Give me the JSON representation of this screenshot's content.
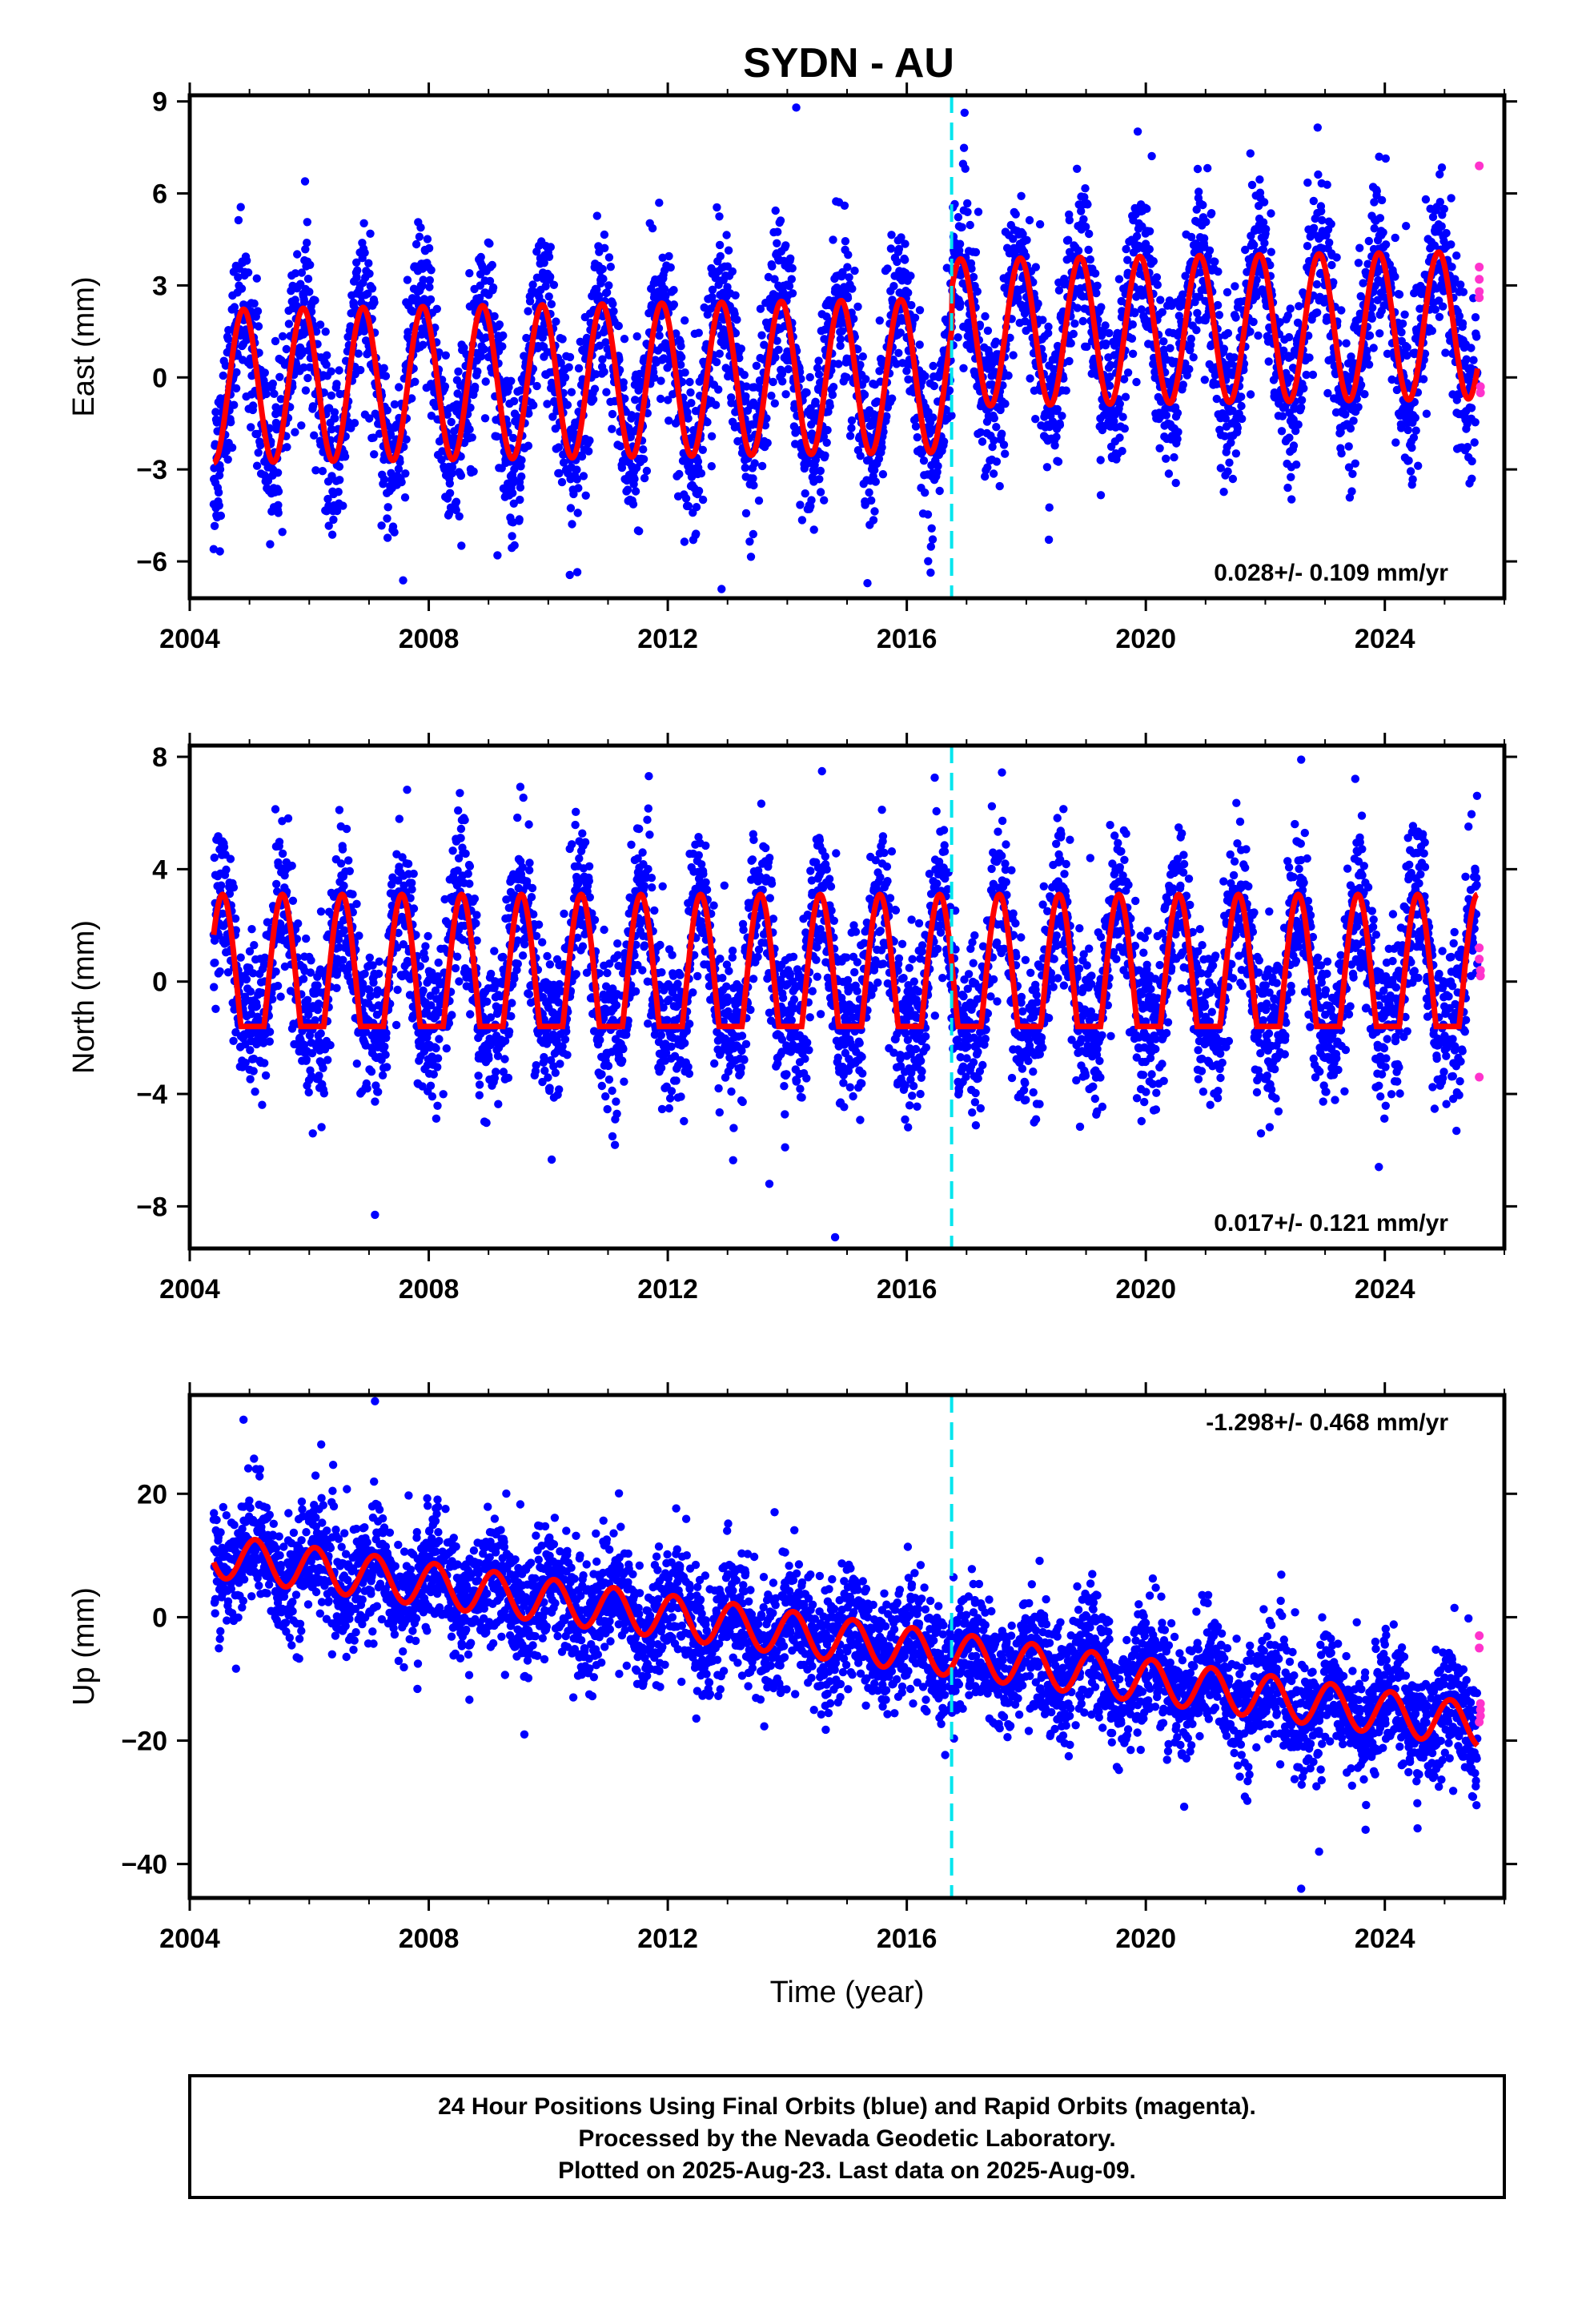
{
  "title": "SYDN - AU",
  "colors": {
    "final_orbits": "#0000ff",
    "rapid_orbits": "#ff33cc",
    "model_fit": "#ff0000",
    "event_line": "#00e5ee"
  },
  "footer": {
    "lines": [
      "24 Hour Positions Using Final Orbits (blue) and Rapid Orbits (magenta).",
      "Processed by the Nevada Geodetic Laboratory.",
      "Plotted on 2025-Aug-23. Last data on 2025-Aug-09."
    ]
  },
  "chart_data": [
    {
      "type": "scatter",
      "component": "east",
      "title": "SYDN - AU",
      "xlabel": "",
      "ylabel": "East (mm)",
      "xlim": [
        2004,
        2026
      ],
      "ylim": [
        -7.2,
        9.2
      ],
      "x_ticks": [
        2004,
        2008,
        2012,
        2016,
        2020,
        2024
      ],
      "x_tick_labels": [
        "2004",
        "2008",
        "2012",
        "2016",
        "2020",
        "2024"
      ],
      "y_ticks": [
        -6,
        -3,
        0,
        3,
        6,
        9
      ],
      "y_tick_labels": [
        "−6",
        "−3",
        "0",
        "3",
        "6",
        "9"
      ],
      "rate_label": "0.028+/- 0.109 mm/yr",
      "rate_position": "bottom-right",
      "event_line_x": 2016.75,
      "series": [
        {
          "name": "Final Orbits",
          "color": "#0000ff",
          "data_range": [
            2004.4,
            2025.55
          ],
          "model": {
            "type": "seasonal",
            "amplitude_early": 2.5,
            "amplitude_late": 2.4,
            "offset_early": -0.3,
            "offset_after_event": 1.1,
            "peak_phase_year_fraction": 0.9,
            "trend_mm_per_yr": 0.028
          },
          "scatter_mm": 1.3,
          "outliers": [
            [
              2014.15,
              8.8
            ],
            [
              2009.15,
              -5.8
            ],
            [
              2012.9,
              -6.9
            ],
            [
              2004.4,
              -5.6
            ]
          ]
        },
        {
          "name": "Rapid Orbits",
          "color": "#ff33cc",
          "points": [
            [
              2025.58,
              6.9
            ],
            [
              2025.58,
              3.6
            ],
            [
              2025.58,
              3.2
            ],
            [
              2025.58,
              2.8
            ],
            [
              2025.58,
              2.6
            ],
            [
              2025.6,
              -0.3
            ],
            [
              2025.6,
              -0.5
            ]
          ]
        },
        {
          "name": "Model Fit",
          "color": "#ff0000"
        }
      ]
    },
    {
      "type": "scatter",
      "component": "north",
      "title": "",
      "xlabel": "",
      "ylabel": "North (mm)",
      "xlim": [
        2004,
        2026
      ],
      "ylim": [
        -9.5,
        8.4
      ],
      "x_ticks": [
        2004,
        2008,
        2012,
        2016,
        2020,
        2024
      ],
      "x_tick_labels": [
        "2004",
        "2008",
        "2012",
        "2016",
        "2020",
        "2024"
      ],
      "y_ticks": [
        -8,
        -4,
        0,
        4,
        8
      ],
      "y_tick_labels": [
        "−8",
        "−4",
        "0",
        "4",
        "8"
      ],
      "rate_label": "0.017+/- 0.121 mm/yr",
      "rate_position": "bottom-right",
      "event_line_x": 2016.75,
      "series": [
        {
          "name": "Final Orbits",
          "color": "#0000ff",
          "data_range": [
            2004.4,
            2025.55
          ],
          "model": {
            "type": "seasonal_peaked",
            "peak": 3.1,
            "trough": -1.6,
            "peak_phase_year_fraction": 0.55,
            "trend_mm_per_yr": 0.017
          },
          "scatter_mm": 1.4,
          "outliers": [
            [
              2007.1,
              -8.3
            ],
            [
              2014.8,
              -9.1
            ],
            [
              2013.7,
              -7.2
            ],
            [
              2022.6,
              7.9
            ],
            [
              2023.9,
              -6.6
            ]
          ]
        },
        {
          "name": "Rapid Orbits",
          "color": "#ff33cc",
          "points": [
            [
              2025.58,
              1.2
            ],
            [
              2025.58,
              0.8
            ],
            [
              2025.6,
              0.4
            ],
            [
              2025.6,
              0.2
            ],
            [
              2025.58,
              -3.4
            ]
          ]
        },
        {
          "name": "Model Fit",
          "color": "#ff0000"
        }
      ]
    },
    {
      "type": "scatter",
      "component": "up",
      "title": "",
      "xlabel": "Time (year)",
      "ylabel": "Up (mm)",
      "xlim": [
        2004,
        2026
      ],
      "ylim": [
        -45.5,
        36
      ],
      "x_ticks": [
        2004,
        2008,
        2012,
        2016,
        2020,
        2024
      ],
      "x_tick_labels": [
        "2004",
        "2008",
        "2012",
        "2016",
        "2020",
        "2024"
      ],
      "y_ticks": [
        -40,
        -20,
        0,
        20
      ],
      "y_tick_labels": [
        "−40",
        "−20",
        "0",
        "20"
      ],
      "rate_label": "-1.298+/- 0.468 mm/yr",
      "rate_position": "top-right",
      "event_line_x": 2016.75,
      "series": [
        {
          "name": "Final Orbits",
          "color": "#0000ff",
          "data_range": [
            2004.4,
            2025.55
          ],
          "model": {
            "type": "seasonal",
            "amplitude": 3.5,
            "offset_2004": 10.5,
            "trend_mm_per_yr": -1.298,
            "peak_phase_year_fraction": 0.1
          },
          "scatter_mm": 4.8,
          "outliers": [
            [
              2004.9,
              32
            ],
            [
              2007.1,
              35
            ],
            [
              2006.2,
              28
            ],
            [
              2009.6,
              -19
            ],
            [
              2022.6,
              -44
            ],
            [
              2022.9,
              -38
            ]
          ]
        },
        {
          "name": "Rapid Orbits",
          "color": "#ff33cc",
          "points": [
            [
              2025.58,
              -3
            ],
            [
              2025.58,
              -5
            ],
            [
              2025.6,
              -14
            ],
            [
              2025.6,
              -15
            ],
            [
              2025.6,
              -16
            ],
            [
              2025.58,
              -17
            ]
          ]
        },
        {
          "name": "Model Fit",
          "color": "#ff0000"
        }
      ]
    }
  ]
}
